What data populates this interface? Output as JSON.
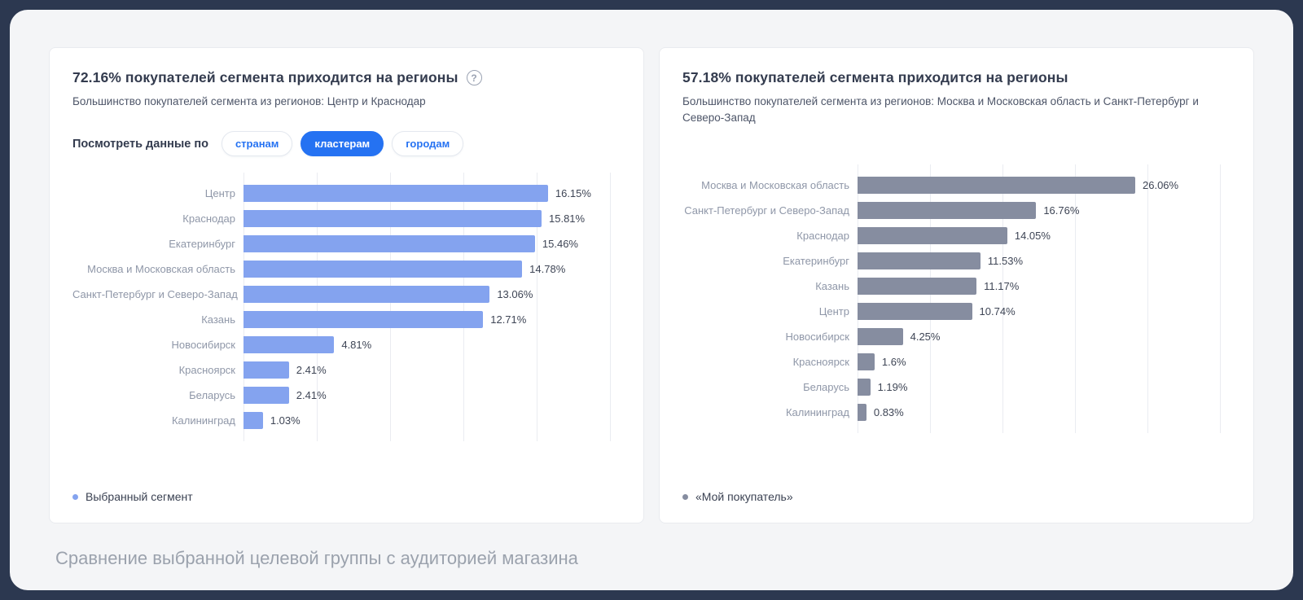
{
  "caption": "Сравнение выбранной целевой группы с аудиторией магазина",
  "left_panel": {
    "title": "72.16% покупателей сегмента приходится на регионы",
    "subtitle": "Большинство покупателей сегмента из регионов: Центр и Краснодар",
    "help_icon": "question-mark",
    "filter_label": "Посмотреть данные по",
    "filters": [
      {
        "label": "странам",
        "active": false
      },
      {
        "label": "кластерам",
        "active": true
      },
      {
        "label": "городам",
        "active": false
      }
    ],
    "legend": "Выбранный сегмент",
    "bar_color": "#84a3ef"
  },
  "right_panel": {
    "title": "57.18% покупателей сегмента приходится на регионы",
    "subtitle": "Большинство покупателей сегмента из регионов: Москва и Московская область и Санкт-Петербург и Северо-Запад",
    "legend": "«Мой покупатель»",
    "bar_color": "#868da0"
  },
  "chart_data": [
    {
      "type": "bar",
      "orientation": "horizontal",
      "title": "72.16% покупателей сегмента приходится на регионы",
      "series_name": "Выбранный сегмент",
      "categories": [
        "Центр",
        "Краснодар",
        "Екатеринбург",
        "Москва и Московская область",
        "Санкт-Петербург и Северо-Запад",
        "Казань",
        "Новосибирск",
        "Красноярск",
        "Беларусь",
        "Калининград"
      ],
      "values": [
        16.15,
        15.81,
        15.46,
        14.78,
        13.06,
        12.71,
        4.81,
        2.41,
        2.41,
        1.03
      ],
      "value_labels": [
        "16.15%",
        "15.81%",
        "15.46%",
        "14.78%",
        "13.06%",
        "12.71%",
        "4.81%",
        "2.41%",
        "2.41%",
        "1.03%"
      ],
      "xlim": [
        0,
        20
      ],
      "grid": true,
      "legend_position": "bottom-left"
    },
    {
      "type": "bar",
      "orientation": "horizontal",
      "title": "57.18% покупателей сегмента приходится на регионы",
      "series_name": "«Мой покупатель»",
      "categories": [
        "Москва и Московская область",
        "Санкт-Петербург и Северо-Запад",
        "Краснодар",
        "Екатеринбург",
        "Казань",
        "Центр",
        "Новосибирск",
        "Красноярск",
        "Беларусь",
        "Калининград"
      ],
      "values": [
        26.06,
        16.76,
        14.05,
        11.53,
        11.17,
        10.74,
        4.25,
        1.6,
        1.19,
        0.83
      ],
      "value_labels": [
        "26.06%",
        "16.76%",
        "14.05%",
        "11.53%",
        "11.17%",
        "10.74%",
        "4.25%",
        "1.6%",
        "1.19%",
        "0.83%"
      ],
      "xlim": [
        0,
        35
      ],
      "grid": true,
      "legend_position": "bottom-left"
    }
  ]
}
